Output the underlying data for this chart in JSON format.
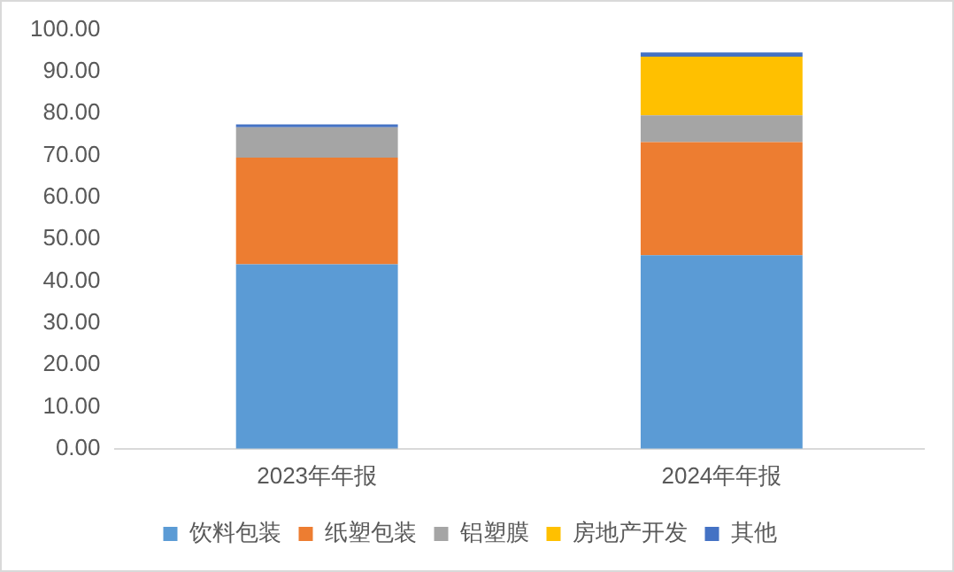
{
  "chart_data": {
    "type": "bar",
    "stacked": true,
    "categories": [
      "2023年年报",
      "2024年年报"
    ],
    "series": [
      {
        "name": "饮料包装",
        "color": "#5b9bd5",
        "values": [
          44.0,
          46.2
        ]
      },
      {
        "name": "纸塑包装",
        "color": "#ed7d31",
        "values": [
          25.5,
          27.0
        ]
      },
      {
        "name": "铝塑膜",
        "color": "#a5a5a5",
        "values": [
          7.2,
          6.4
        ]
      },
      {
        "name": "房地产开发",
        "color": "#ffc000",
        "values": [
          0,
          14.0
        ]
      },
      {
        "name": "其他",
        "color": "#4472c4",
        "values": [
          0.7,
          1.0
        ]
      }
    ],
    "ylim": [
      0,
      100
    ],
    "yticks": [
      {
        "value": 0,
        "label": "0.00"
      },
      {
        "value": 10,
        "label": "10.00"
      },
      {
        "value": 20,
        "label": "20.00"
      },
      {
        "value": 30,
        "label": "30.00"
      },
      {
        "value": 40,
        "label": "40.00"
      },
      {
        "value": 50,
        "label": "50.00"
      },
      {
        "value": 60,
        "label": "60.00"
      },
      {
        "value": 70,
        "label": "70.00"
      },
      {
        "value": 80,
        "label": "80.00"
      },
      {
        "value": 90,
        "label": "90.00"
      },
      {
        "value": 100,
        "label": "100.00"
      }
    ],
    "grid": false,
    "legend": "bottom"
  }
}
